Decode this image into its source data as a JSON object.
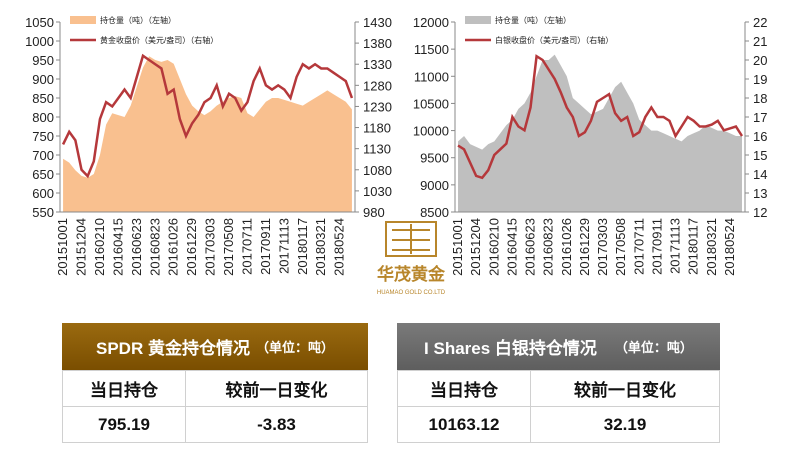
{
  "chart_data": [
    {
      "type": "area-line",
      "legend": "upper-left",
      "categories": [
        "20151001",
        null,
        null,
        "20151204",
        null,
        null,
        "20160210",
        null,
        null,
        "20160415",
        null,
        null,
        "20160623",
        null,
        null,
        "20160823",
        null,
        null,
        "20161026",
        null,
        null,
        "20161229",
        null,
        null,
        "20170303",
        null,
        null,
        "20170508",
        null,
        null,
        "20170711",
        null,
        null,
        "20170911",
        null,
        null,
        "20171113",
        null,
        null,
        "20180117",
        null,
        null,
        "20180321",
        null,
        null,
        "20180524",
        null,
        null
      ],
      "ylim": [
        550,
        1050
      ],
      "yticks": [
        550,
        600,
        650,
        700,
        750,
        800,
        850,
        900,
        950,
        1000,
        1050
      ],
      "y2lim": [
        980,
        1430
      ],
      "y2ticks": [
        980,
        1030,
        1080,
        1130,
        1180,
        1230,
        1280,
        1330,
        1380,
        1430
      ],
      "series": [
        {
          "name": "持仓量（吨）（左轴）",
          "color": "#f9c08f",
          "type": "area",
          "values": [
            690,
            680,
            660,
            645,
            640,
            650,
            700,
            780,
            810,
            805,
            800,
            830,
            880,
            930,
            960,
            950,
            945,
            950,
            940,
            900,
            860,
            830,
            815,
            805,
            815,
            830,
            840,
            850,
            855,
            850,
            810,
            800,
            820,
            840,
            850,
            850,
            845,
            840,
            835,
            830,
            840,
            850,
            860,
            870,
            860,
            850,
            840,
            820
          ]
        },
        {
          "name": "黄金收盘价（美元/盎司）（右轴）",
          "color": "#b5383b",
          "type": "line",
          "axis": "y2",
          "values": [
            1140,
            1170,
            1150,
            1080,
            1065,
            1100,
            1200,
            1240,
            1230,
            1250,
            1270,
            1250,
            1300,
            1350,
            1340,
            1330,
            1320,
            1260,
            1270,
            1200,
            1160,
            1190,
            1210,
            1240,
            1250,
            1280,
            1230,
            1260,
            1250,
            1220,
            1240,
            1290,
            1320,
            1280,
            1270,
            1280,
            1270,
            1250,
            1300,
            1330,
            1320,
            1330,
            1320,
            1320,
            1310,
            1300,
            1290,
            1250
          ]
        }
      ]
    },
    {
      "type": "area-line",
      "legend": "upper-left",
      "categories": [
        "20151001",
        null,
        null,
        "20151204",
        null,
        null,
        "20160210",
        null,
        null,
        "20160415",
        null,
        null,
        "20160623",
        null,
        null,
        "20160823",
        null,
        null,
        "20161026",
        null,
        null,
        "20161229",
        null,
        null,
        "20170303",
        null,
        null,
        "20170508",
        null,
        null,
        "20170711",
        null,
        null,
        "20170911",
        null,
        null,
        "20171113",
        null,
        null,
        "20180117",
        null,
        null,
        "20180321",
        null,
        null,
        "20180524",
        null,
        null
      ],
      "ylim": [
        8500,
        12000
      ],
      "yticks": [
        8500,
        9000,
        9500,
        10000,
        10500,
        11000,
        11500,
        12000
      ],
      "y2lim": [
        12,
        22
      ],
      "y2ticks": [
        12,
        13,
        14,
        15,
        16,
        17,
        18,
        19,
        20,
        21,
        22
      ],
      "series": [
        {
          "name": "持仓量（吨）（左轴）",
          "color": "#bfbfbf",
          "type": "area",
          "values": [
            9800,
            9900,
            9750,
            9700,
            9650,
            9750,
            9800,
            9950,
            10100,
            10200,
            10400,
            10500,
            10700,
            11000,
            11300,
            11300,
            11400,
            11200,
            11000,
            10600,
            10500,
            10400,
            10300,
            10350,
            10400,
            10600,
            10800,
            10900,
            10700,
            10500,
            10200,
            10100,
            10000,
            10000,
            9950,
            9900,
            9850,
            9800,
            9900,
            9950,
            10000,
            10100,
            10050,
            10000,
            10000,
            9950,
            9900,
            9900
          ]
        },
        {
          "name": "白银收盘价（美元/盎司）（右轴）",
          "color": "#b5383b",
          "type": "line",
          "axis": "y2",
          "values": [
            15.5,
            15.3,
            14.6,
            13.9,
            13.8,
            14.2,
            15.0,
            15.3,
            15.6,
            17.0,
            16.5,
            16.3,
            17.5,
            20.2,
            20.0,
            19.5,
            19.0,
            18.3,
            17.5,
            17.0,
            16.0,
            16.2,
            16.8,
            17.8,
            18.0,
            18.2,
            17.2,
            16.8,
            17.0,
            16.0,
            16.2,
            17.0,
            17.5,
            17.0,
            17.0,
            16.8,
            16.0,
            16.5,
            17.0,
            16.8,
            16.5,
            16.5,
            16.6,
            16.8,
            16.3,
            16.4,
            16.5,
            16.0
          ]
        }
      ]
    }
  ],
  "logo": {
    "name": "华茂黄金",
    "subtitle": "HUAMAO GOLD CO.LTD"
  },
  "tables": [
    {
      "title": "SPDR 黄金持仓情况",
      "unit": "（单位：吨）",
      "headers": [
        "当日持仓",
        "较前一日变化"
      ],
      "row": [
        "795.19",
        "-3.83"
      ]
    },
    {
      "title": "I Shares 白银持仓情况",
      "unit": "（单位：吨）",
      "headers": [
        "当日持仓",
        "较前一日变化"
      ],
      "row": [
        "10163.12",
        "32.19"
      ]
    }
  ]
}
